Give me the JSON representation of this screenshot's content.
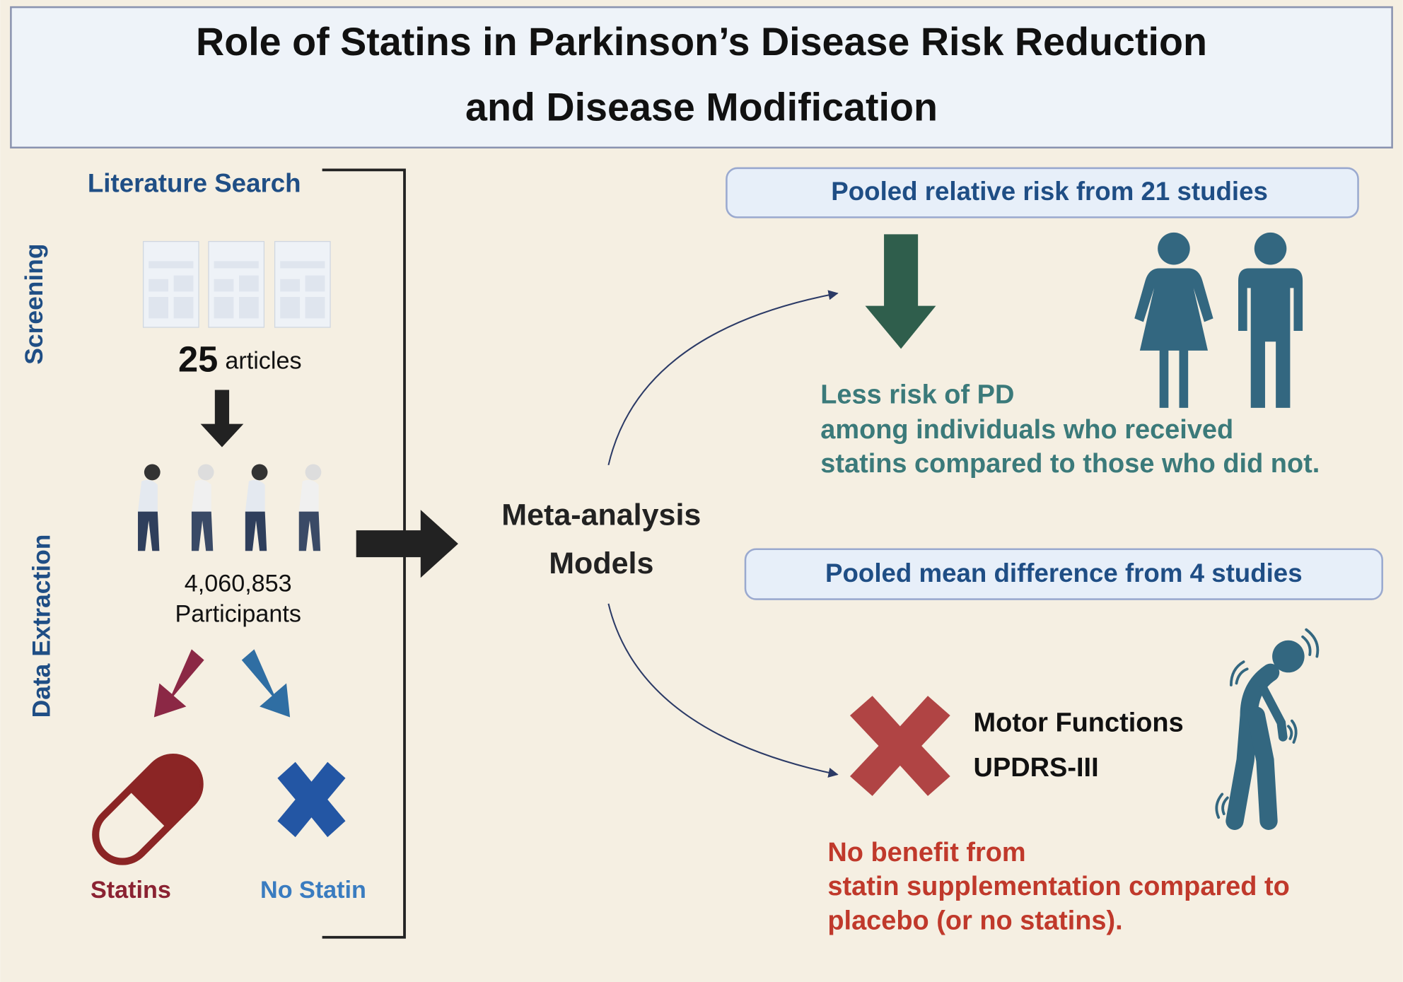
{
  "title": {
    "line1": "Role of Statins in Parkinson’s Disease Risk Reduction",
    "line2": "and Disease Modification"
  },
  "left": {
    "heading": "Literature Search",
    "side_top": "Screening",
    "side_bottom": "Data Extraction",
    "articles_count": "25",
    "articles_label": "articles",
    "participants_count": "4,060,853",
    "participants_label": "Participants",
    "group_a": "Statins",
    "group_b": "No Statin"
  },
  "center": {
    "line1": "Meta-analysis",
    "line2": "Models"
  },
  "top_result": {
    "box": "Pooled relative risk from 21 studies",
    "lines": [
      "Less risk of PD",
      "among individuals who received",
      "statins compared to those who did not."
    ]
  },
  "bottom_result": {
    "box": "Pooled mean difference from 4 studies",
    "outcome": [
      "Motor Functions",
      "UPDRS-III"
    ],
    "lines": [
      "No benefit from",
      "statin supplementation compared to",
      "placebo (or no statins)."
    ]
  }
}
